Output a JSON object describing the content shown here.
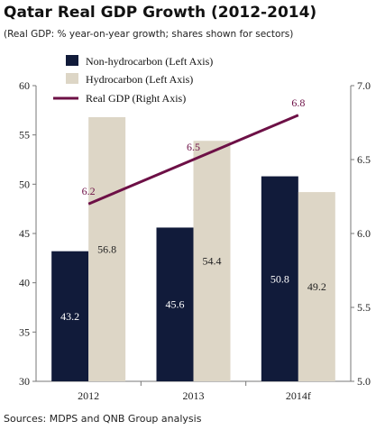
{
  "title": "Qatar Real GDP Growth (2012-2014)",
  "subtitle": "(Real GDP: % year-on-year growth; shares shown for sectors)",
  "source": "Sources: MDPS and QNB Group analysis",
  "colors": {
    "non_hydrocarbon": "#111b3a",
    "hydrocarbon": "#ddd6c6",
    "real_gdp": "#6d1046",
    "axis": "#777777"
  },
  "chart_data": {
    "type": "bar",
    "categories": [
      "2012",
      "2013",
      "2014f"
    ],
    "series": [
      {
        "name": "Non-hydrocarbon (Left Axis)",
        "type": "bar",
        "axis": "left",
        "values": [
          43.2,
          45.6,
          50.8
        ]
      },
      {
        "name": "Hydrocarbon (Left Axis)",
        "type": "bar",
        "axis": "left",
        "values": [
          56.8,
          54.4,
          49.2
        ]
      },
      {
        "name": "Real GDP (Right Axis)",
        "type": "line",
        "axis": "right",
        "values": [
          6.2,
          6.5,
          6.8
        ]
      }
    ],
    "left_axis": {
      "min": 30,
      "max": 60,
      "step": 5,
      "ticks": [
        "30",
        "35",
        "40",
        "45",
        "50",
        "55",
        "60"
      ]
    },
    "right_axis": {
      "min": 5.0,
      "max": 7.0,
      "step": 0.5,
      "ticks": [
        "5.0",
        "5.5",
        "6.0",
        "6.5",
        "7.0"
      ]
    },
    "bar_labels": {
      "non_hydrocarbon": [
        "43.2",
        "45.6",
        "50.8"
      ],
      "hydrocarbon": [
        "56.8",
        "54.4",
        "49.2"
      ],
      "real_gdp": [
        "6.2",
        "6.5",
        "6.8"
      ]
    },
    "legend_position": "top-left",
    "grid": false
  }
}
